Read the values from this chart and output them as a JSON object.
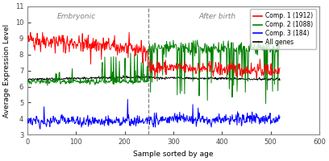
{
  "xlabel": "Sample sorted by age",
  "ylabel": "Average Expression Level",
  "xlim": [
    0,
    600
  ],
  "ylim": [
    3,
    11
  ],
  "yticks": [
    3,
    4,
    5,
    6,
    7,
    8,
    9,
    10,
    11
  ],
  "xticks": [
    0,
    100,
    200,
    300,
    400,
    500,
    600
  ],
  "divider_x": 248,
  "embryonic_label": "Embryonic",
  "embryonic_x": 100,
  "embryonic_y": 10.6,
  "afterbirth_label": "After birth",
  "afterbirth_x": 390,
  "afterbirth_y": 10.6,
  "legend_entries": [
    "Comp. 1 (1912)",
    "Comp. 2 (1088)",
    "Comp. 3 (184)",
    "All genes"
  ],
  "legend_colors": [
    "red",
    "green",
    "blue",
    "black"
  ],
  "comp1_color": "red",
  "comp2_color": "green",
  "comp3_color": "blue",
  "allgenes_color": "black",
  "bg_color": "#ffffff",
  "n_embryonic": 248,
  "n_total": 520,
  "seed": 42
}
